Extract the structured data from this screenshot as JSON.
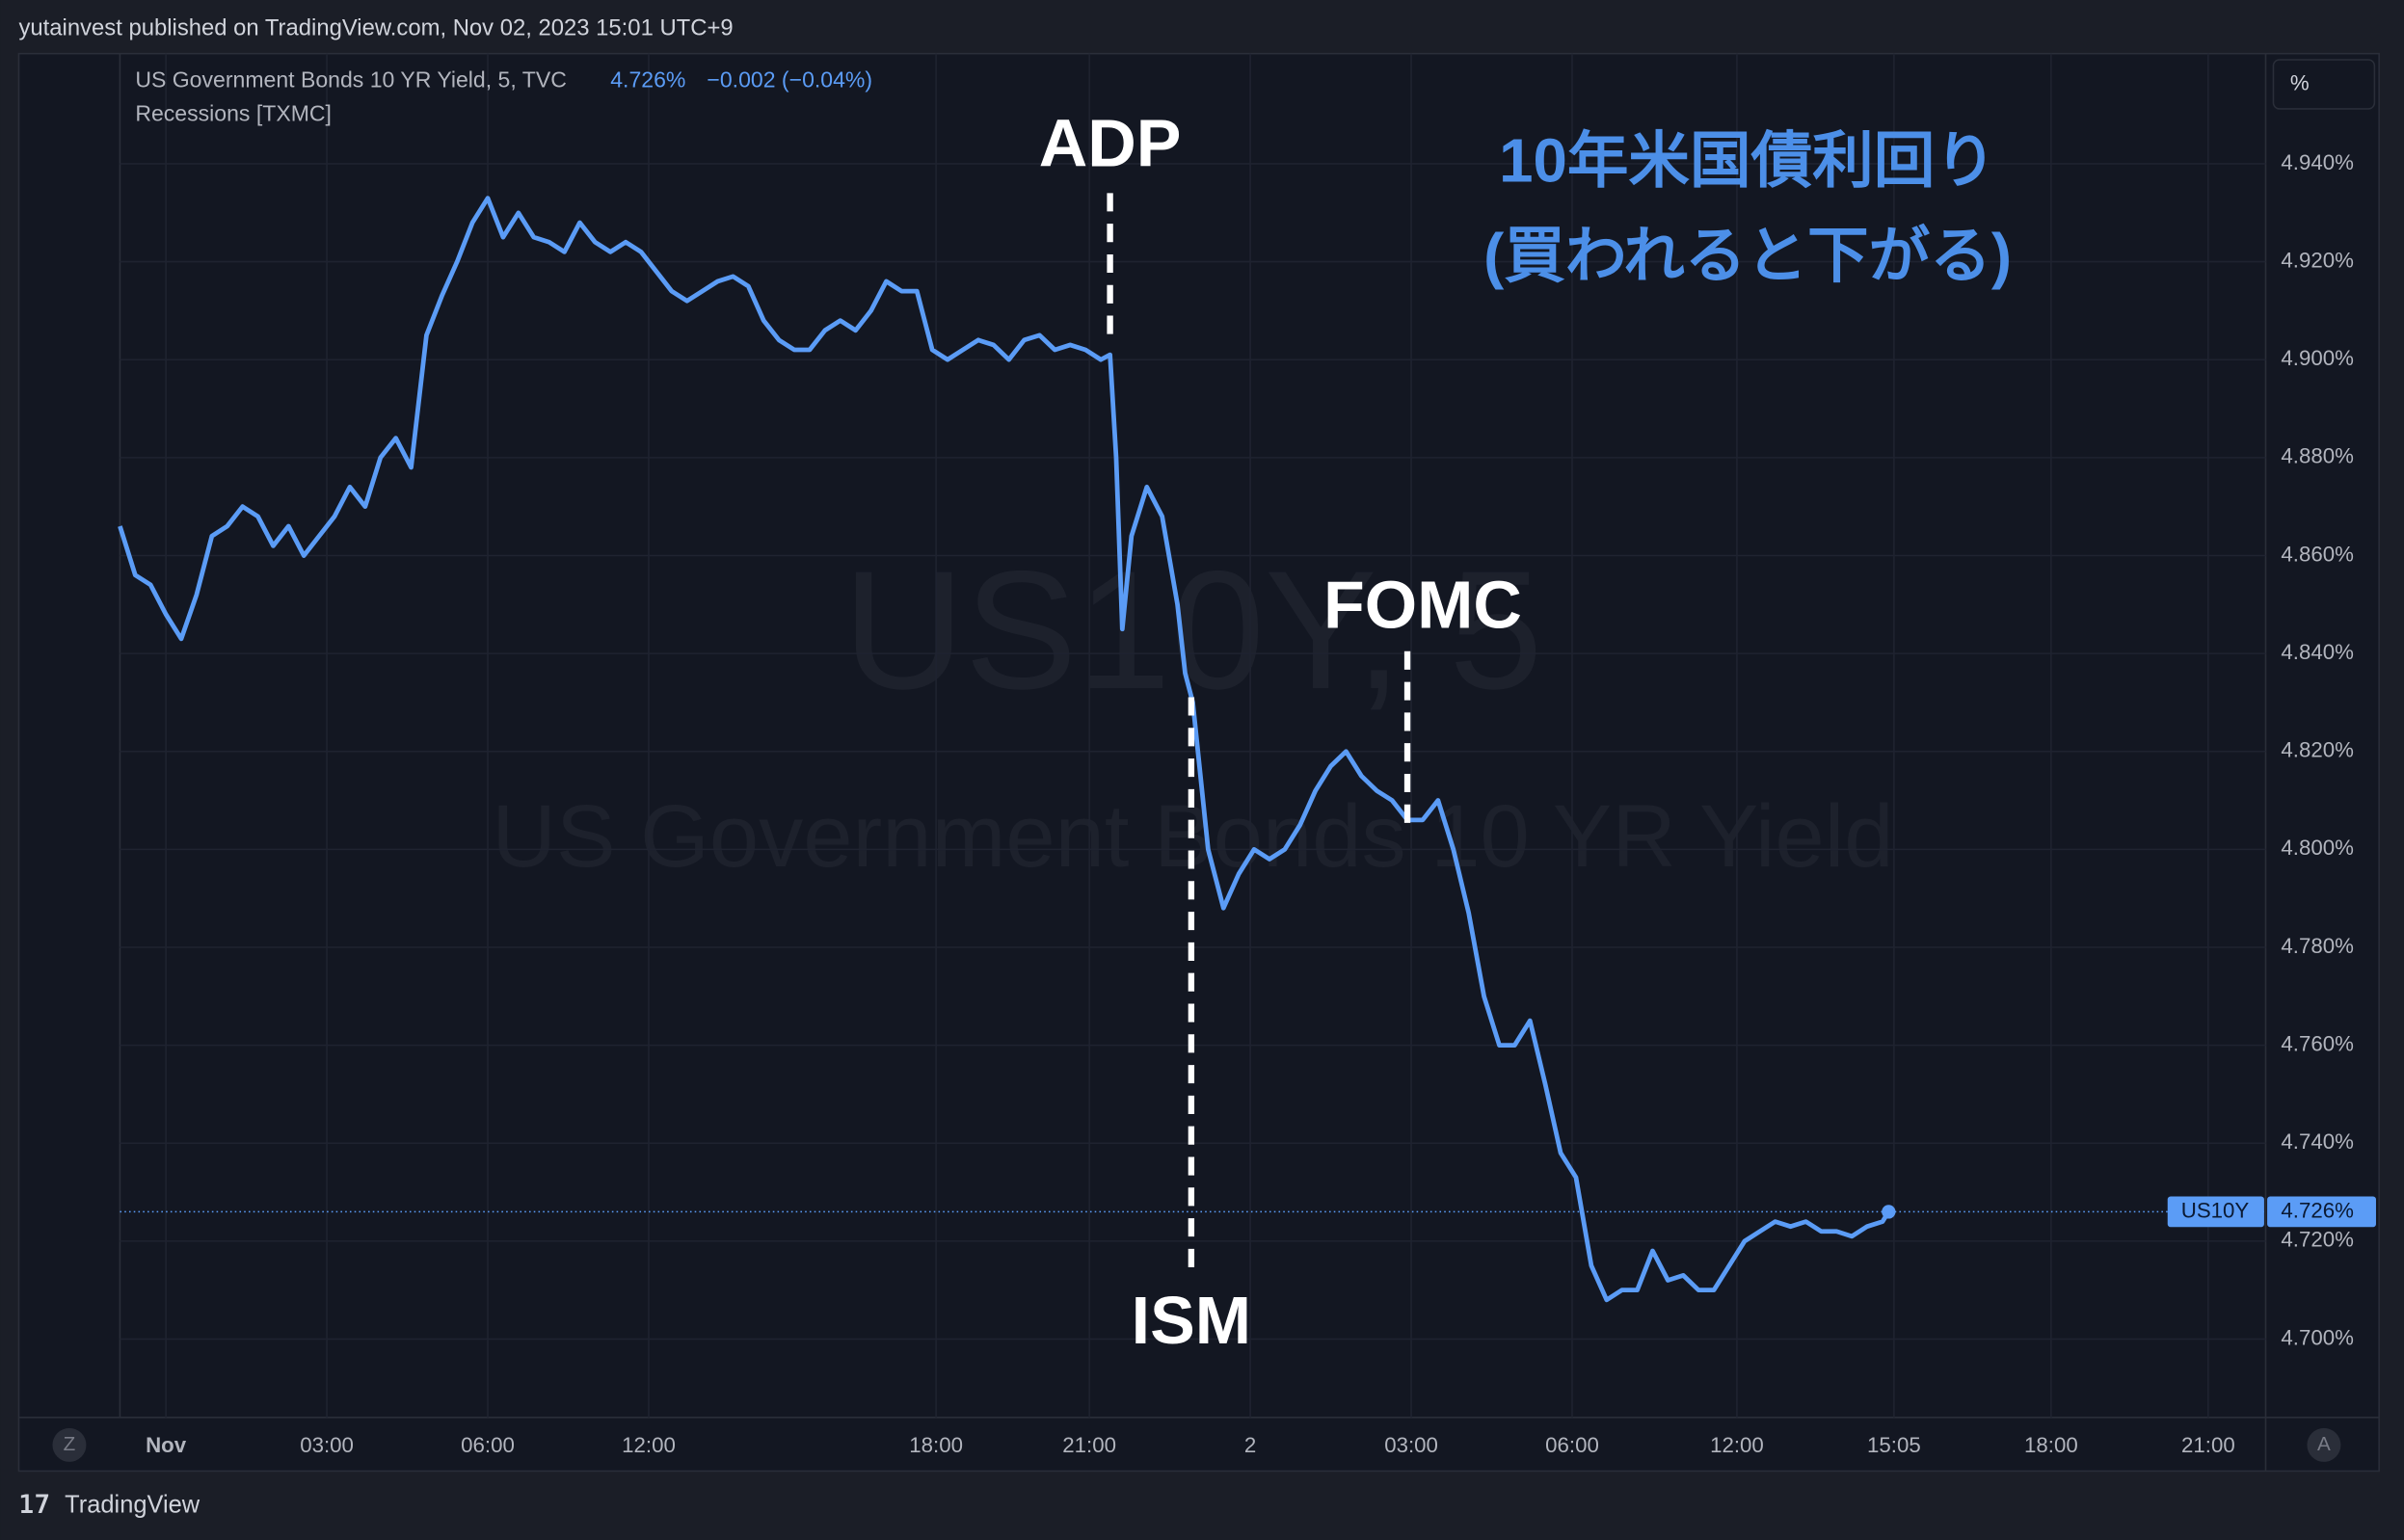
{
  "header": "yutainvest published on TradingView.com, Nov 02, 2023 15:01 UTC+9",
  "footer": "TradingView",
  "chart_data": {
    "type": "line",
    "legend_title": "US Government Bonds 10 YR Yield, 5, TVC",
    "change": "−0.002 (−0.04%)",
    "indicator": "Recessions [TXMC]",
    "watermark": [
      "US10Y, 5",
      "US Government Bonds 10 YR Yield"
    ],
    "axis_unit": "%",
    "corner_left": "Z",
    "corner_right": "A",
    "subtitle": [
      "10年米国債利回り",
      "(買われると下がる)"
    ],
    "annotations": [
      {
        "text": "ADP",
        "x": 258.4
      },
      {
        "text": "ISM",
        "x": 279.6
      },
      {
        "text": "FOMC",
        "x": 336
      }
    ],
    "last_price": 4.726,
    "last_price_label": "4.726%",
    "grid": true,
    "xlim": [
      0,
      560
    ],
    "ylim": [
      4.684,
      4.9625
    ],
    "xticks": [
      {
        "value": 12,
        "label": "Nov"
      },
      {
        "value": 54,
        "label": "03:00"
      },
      {
        "value": 96,
        "label": "06:00"
      },
      {
        "value": 138,
        "label": "12:00"
      },
      {
        "value": 213,
        "label": "18:00"
      },
      {
        "value": 253,
        "label": "21:00"
      },
      {
        "value": 295,
        "label": "2"
      },
      {
        "value": 337,
        "label": "03:00"
      },
      {
        "value": 379,
        "label": "06:00"
      },
      {
        "value": 422,
        "label": "12:00"
      },
      {
        "value": 463,
        "label": "15:05"
      },
      {
        "value": 504,
        "label": "18:00"
      },
      {
        "value": 545,
        "label": "21:00"
      }
    ],
    "yticks": [
      {
        "value": 4.7,
        "label": "4.700%"
      },
      {
        "value": 4.72,
        "label": "4.720%"
      },
      {
        "value": 4.74,
        "label": "4.740%"
      },
      {
        "value": 4.76,
        "label": "4.760%"
      },
      {
        "value": 4.78,
        "label": "4.780%"
      },
      {
        "value": 4.8,
        "label": "4.800%"
      },
      {
        "value": 4.82,
        "label": "4.820%"
      },
      {
        "value": 4.84,
        "label": "4.840%"
      },
      {
        "value": 4.86,
        "label": "4.860%"
      },
      {
        "value": 4.88,
        "label": "4.880%"
      },
      {
        "value": 4.9,
        "label": "4.900%"
      },
      {
        "value": 4.92,
        "label": "4.920%"
      },
      {
        "value": 4.94,
        "label": "4.940%"
      }
    ],
    "series": [
      {
        "name": "US10Y",
        "color": "#5b9cf6",
        "x": [
          0,
          4,
          8,
          12,
          16,
          20,
          24,
          28,
          32,
          36,
          40,
          44,
          48,
          52,
          56,
          60,
          64,
          68,
          72,
          76,
          80,
          84,
          88,
          92,
          96,
          100,
          104,
          108,
          112,
          116,
          120,
          124,
          128,
          132,
          136,
          140,
          144,
          148,
          152,
          156,
          160,
          164,
          168,
          172,
          176,
          180,
          184,
          188,
          192,
          196,
          200,
          204,
          208,
          212,
          216,
          220,
          224,
          228,
          232,
          236,
          240,
          244,
          248,
          252,
          256,
          258.4,
          260,
          261.6,
          264,
          268,
          272,
          276,
          278,
          280,
          284,
          288,
          292,
          296,
          300,
          304,
          308,
          312,
          316,
          320,
          324,
          328,
          332,
          336,
          340,
          344,
          348,
          352,
          356,
          360,
          364,
          368,
          372,
          376,
          380,
          384,
          388,
          392,
          396,
          400,
          404,
          408,
          412,
          416,
          420,
          424,
          428,
          432,
          436,
          440,
          444,
          448,
          452,
          456,
          460,
          461.6
        ],
        "values": [
          4.866,
          4.856,
          4.854,
          4.848,
          4.843,
          4.852,
          4.864,
          4.866,
          4.87,
          4.868,
          4.862,
          4.866,
          4.86,
          4.864,
          4.868,
          4.874,
          4.87,
          4.88,
          4.884,
          4.878,
          4.905,
          4.913,
          4.92,
          4.928,
          4.933,
          4.925,
          4.93,
          4.925,
          4.924,
          4.922,
          4.928,
          4.924,
          4.922,
          4.924,
          4.922,
          4.918,
          4.914,
          4.912,
          4.914,
          4.916,
          4.917,
          4.915,
          4.908,
          4.904,
          4.902,
          4.902,
          4.906,
          4.908,
          4.906,
          4.91,
          4.916,
          4.914,
          4.914,
          4.902,
          4.9,
          4.902,
          4.904,
          4.903,
          4.9,
          4.904,
          4.905,
          4.902,
          4.903,
          4.902,
          4.9,
          4.901,
          4.88,
          4.845,
          4.864,
          4.874,
          4.868,
          4.85,
          4.836,
          4.83,
          4.8,
          4.788,
          4.795,
          4.8,
          4.798,
          4.8,
          4.805,
          4.812,
          4.817,
          4.82,
          4.815,
          4.812,
          4.81,
          4.806,
          4.806,
          4.81,
          4.8,
          4.787,
          4.77,
          4.76,
          4.76,
          4.765,
          4.752,
          4.738,
          4.733,
          4.715,
          4.708,
          4.71,
          4.71,
          4.718,
          4.712,
          4.713,
          4.71,
          4.71,
          4.715,
          4.72,
          4.722,
          4.724,
          4.723,
          4.724,
          4.722,
          4.722,
          4.721,
          4.723,
          4.724,
          4.726
        ]
      }
    ]
  }
}
